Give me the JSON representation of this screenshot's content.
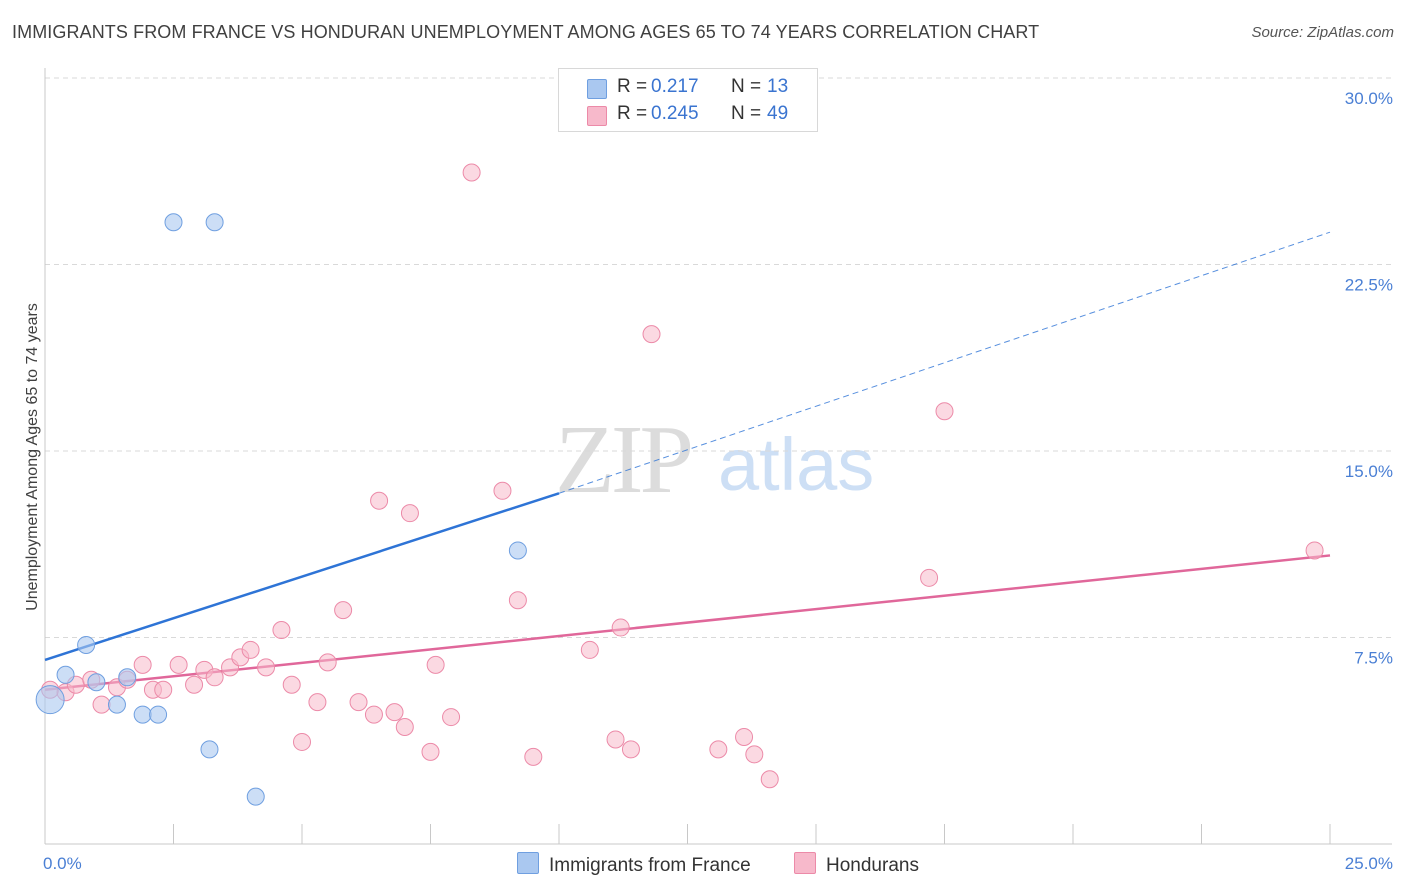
{
  "title": "IMMIGRANTS FROM FRANCE VS HONDURAN UNEMPLOYMENT AMONG AGES 65 TO 74 YEARS CORRELATION CHART",
  "source": "Source: ZipAtlas.com",
  "watermark": {
    "zip": "ZIP",
    "atlas": "atlas"
  },
  "legend": {
    "items": [
      {
        "r_label": "R =",
        "r_value": "0.217",
        "n_label": "N =",
        "n_value": "13",
        "color": "#aac8f0"
      },
      {
        "r_label": "R =",
        "r_value": "0.245",
        "n_label": "N =",
        "n_value": "49",
        "color": "#f7b9cb"
      }
    ]
  },
  "bottom_legend": {
    "france": "Immigrants from France",
    "hondurans": "Hondurans"
  },
  "colors": {
    "france_fill": "#aac8f0",
    "france_stroke": "#6f9fe0",
    "france_line": "#2e74d6",
    "honduran_fill": "#f7b9cb",
    "honduran_stroke": "#ec8aa8",
    "honduran_line": "#e0679a",
    "tick_text": "#4a7fd4",
    "grid": "#d9d9d9"
  },
  "chart_data": {
    "type": "scatter",
    "xlabel": "",
    "ylabel": "Unemployment Among Ages 65 to 74 years",
    "xlim": [
      0,
      25
    ],
    "ylim": [
      0,
      30
    ],
    "x_tick_labels": [
      {
        "value": 0,
        "label": "0.0%"
      },
      {
        "value": 25,
        "label": "25.0%"
      }
    ],
    "y_tick_labels": [
      {
        "value": 7.5,
        "label": "7.5%"
      },
      {
        "value": 15,
        "label": "15.0%"
      },
      {
        "value": 22.5,
        "label": "22.5%"
      },
      {
        "value": 30,
        "label": "30.0%"
      }
    ],
    "grid": true,
    "legend_position": "top-center",
    "series": [
      {
        "name": "Immigrants from France",
        "points": [
          [
            0.1,
            5.0
          ],
          [
            0.4,
            6.0
          ],
          [
            0.8,
            7.2
          ],
          [
            1.0,
            5.7
          ],
          [
            1.4,
            4.8
          ],
          [
            1.6,
            5.9
          ],
          [
            1.9,
            4.4
          ],
          [
            2.2,
            4.4
          ],
          [
            2.5,
            24.2
          ],
          [
            3.3,
            24.2
          ],
          [
            3.2,
            3.0
          ],
          [
            4.1,
            1.1
          ],
          [
            9.2,
            11.0
          ]
        ],
        "trend": {
          "x": [
            0,
            10
          ],
          "y": [
            6.6,
            13.3
          ]
        },
        "trend_extension": {
          "x": [
            10,
            25
          ],
          "y": [
            13.3,
            23.8
          ]
        }
      },
      {
        "name": "Hondurans",
        "points": [
          [
            0.1,
            5.4
          ],
          [
            0.4,
            5.3
          ],
          [
            0.6,
            5.6
          ],
          [
            0.9,
            5.8
          ],
          [
            1.1,
            4.8
          ],
          [
            1.4,
            5.5
          ],
          [
            1.6,
            5.8
          ],
          [
            1.9,
            6.4
          ],
          [
            2.1,
            5.4
          ],
          [
            2.3,
            5.4
          ],
          [
            2.6,
            6.4
          ],
          [
            2.9,
            5.6
          ],
          [
            3.1,
            6.2
          ],
          [
            3.3,
            5.9
          ],
          [
            3.6,
            6.3
          ],
          [
            3.8,
            6.7
          ],
          [
            4.0,
            7.0
          ],
          [
            4.3,
            6.3
          ],
          [
            4.6,
            7.8
          ],
          [
            4.8,
            5.6
          ],
          [
            5.0,
            3.3
          ],
          [
            5.3,
            4.9
          ],
          [
            5.5,
            6.5
          ],
          [
            5.8,
            8.6
          ],
          [
            6.1,
            4.9
          ],
          [
            6.4,
            4.4
          ],
          [
            6.5,
            13.0
          ],
          [
            6.8,
            4.5
          ],
          [
            7.0,
            3.9
          ],
          [
            7.1,
            12.5
          ],
          [
            7.5,
            2.9
          ],
          [
            7.6,
            6.4
          ],
          [
            7.9,
            4.3
          ],
          [
            8.3,
            26.2
          ],
          [
            8.9,
            13.4
          ],
          [
            9.2,
            9.0
          ],
          [
            9.5,
            2.7
          ],
          [
            10.6,
            7.0
          ],
          [
            11.1,
            3.4
          ],
          [
            11.2,
            7.9
          ],
          [
            11.4,
            3.0
          ],
          [
            11.8,
            19.7
          ],
          [
            13.1,
            3.0
          ],
          [
            13.6,
            3.5
          ],
          [
            13.8,
            2.8
          ],
          [
            14.1,
            1.8
          ],
          [
            17.2,
            9.9
          ],
          [
            17.5,
            16.6
          ],
          [
            24.7,
            11.0
          ]
        ],
        "trend": {
          "x": [
            0,
            25
          ],
          "y": [
            5.4,
            10.8
          ]
        }
      }
    ]
  }
}
